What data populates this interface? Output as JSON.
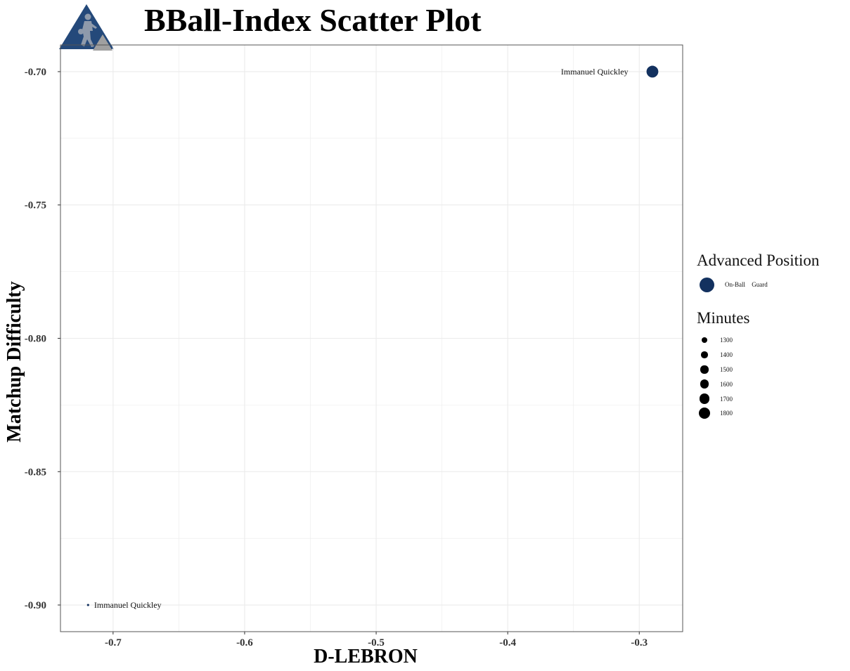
{
  "page": {
    "title": "BBall-Index Scatter Plot"
  },
  "logo": {
    "icon": "basketball-player-triangle-logo",
    "colors": {
      "primary": "#24497a",
      "secondary": "#a0a0a0",
      "figure": "#8e9aab"
    }
  },
  "chart_data": {
    "type": "scatter",
    "xlabel": "D-LEBRON",
    "ylabel": "Matchup Difficulty",
    "xlim": [
      -0.74,
      -0.267
    ],
    "ylim": [
      -0.91,
      -0.69
    ],
    "x_ticks": [
      -0.7,
      -0.6,
      -0.5,
      -0.4,
      -0.3
    ],
    "x_tick_labels": [
      "-0.7",
      "-0.6",
      "-0.5",
      "-0.4",
      "-0.3"
    ],
    "y_ticks": [
      -0.7,
      -0.75,
      -0.8,
      -0.85,
      -0.9
    ],
    "y_tick_labels": [
      "-0.70",
      "-0.75",
      "-0.80",
      "-0.85",
      "-0.90"
    ],
    "grid": true,
    "points": [
      {
        "label": "Immanuel Quickley",
        "x": -0.29,
        "y": -0.7,
        "minutes": 1900,
        "position": "On-Ball Guard",
        "label_side": "left"
      },
      {
        "label": "Immanuel Quickley",
        "x": -0.719,
        "y": -0.9,
        "minutes": 1200,
        "position": "On-Ball Guard",
        "label_side": "right"
      }
    ],
    "colors": {
      "point": "#13315f",
      "grid": "#ebebeb",
      "border": "#555555"
    },
    "legend": {
      "placement": "right",
      "position_title": "Advanced Position",
      "positions": [
        {
          "label": "On-Ball Guard",
          "color": "#13315f"
        }
      ],
      "minutes_title": "Minutes",
      "minutes": [
        {
          "label": "1300",
          "value": 1300
        },
        {
          "label": "1400",
          "value": 1400
        },
        {
          "label": "1500",
          "value": 1500
        },
        {
          "label": "1600",
          "value": 1600
        },
        {
          "label": "1700",
          "value": 1700
        },
        {
          "label": "1800",
          "value": 1800
        }
      ]
    }
  }
}
